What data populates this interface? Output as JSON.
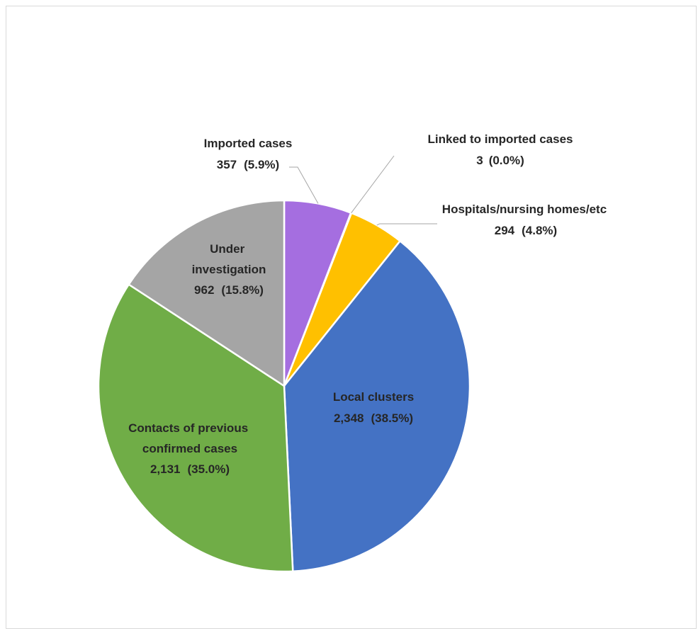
{
  "chart_data": {
    "type": "pie",
    "title": "",
    "slices": [
      {
        "name": "Imported cases",
        "value": 357,
        "percent_label": "(5.9%)",
        "value_label": "357",
        "color": "#a56ee0"
      },
      {
        "name": "Linked to imported cases",
        "value": 3,
        "percent_label": "(0.0%)",
        "value_label": "3",
        "color": "#ed7d31"
      },
      {
        "name": "Hospitals/nursing homes/etc",
        "value": 294,
        "percent_label": "(4.8%)",
        "value_label": "294",
        "color": "#ffc000"
      },
      {
        "name": "Local clusters",
        "value": 2348,
        "percent_label": "(38.5%)",
        "value_label": "2,348",
        "color": "#4472c4"
      },
      {
        "name": "Contacts of previous confirmed cases",
        "value": 2131,
        "percent_label": "(35.0%)",
        "value_label": "2,131",
        "color": "#70ad47"
      },
      {
        "name": "Under investigation",
        "value": 962,
        "percent_label": "(15.8%)",
        "value_label": "962",
        "color": "#a5a5a5"
      }
    ],
    "legend": "none",
    "start_angle": "12 o'clock, clockwise"
  }
}
